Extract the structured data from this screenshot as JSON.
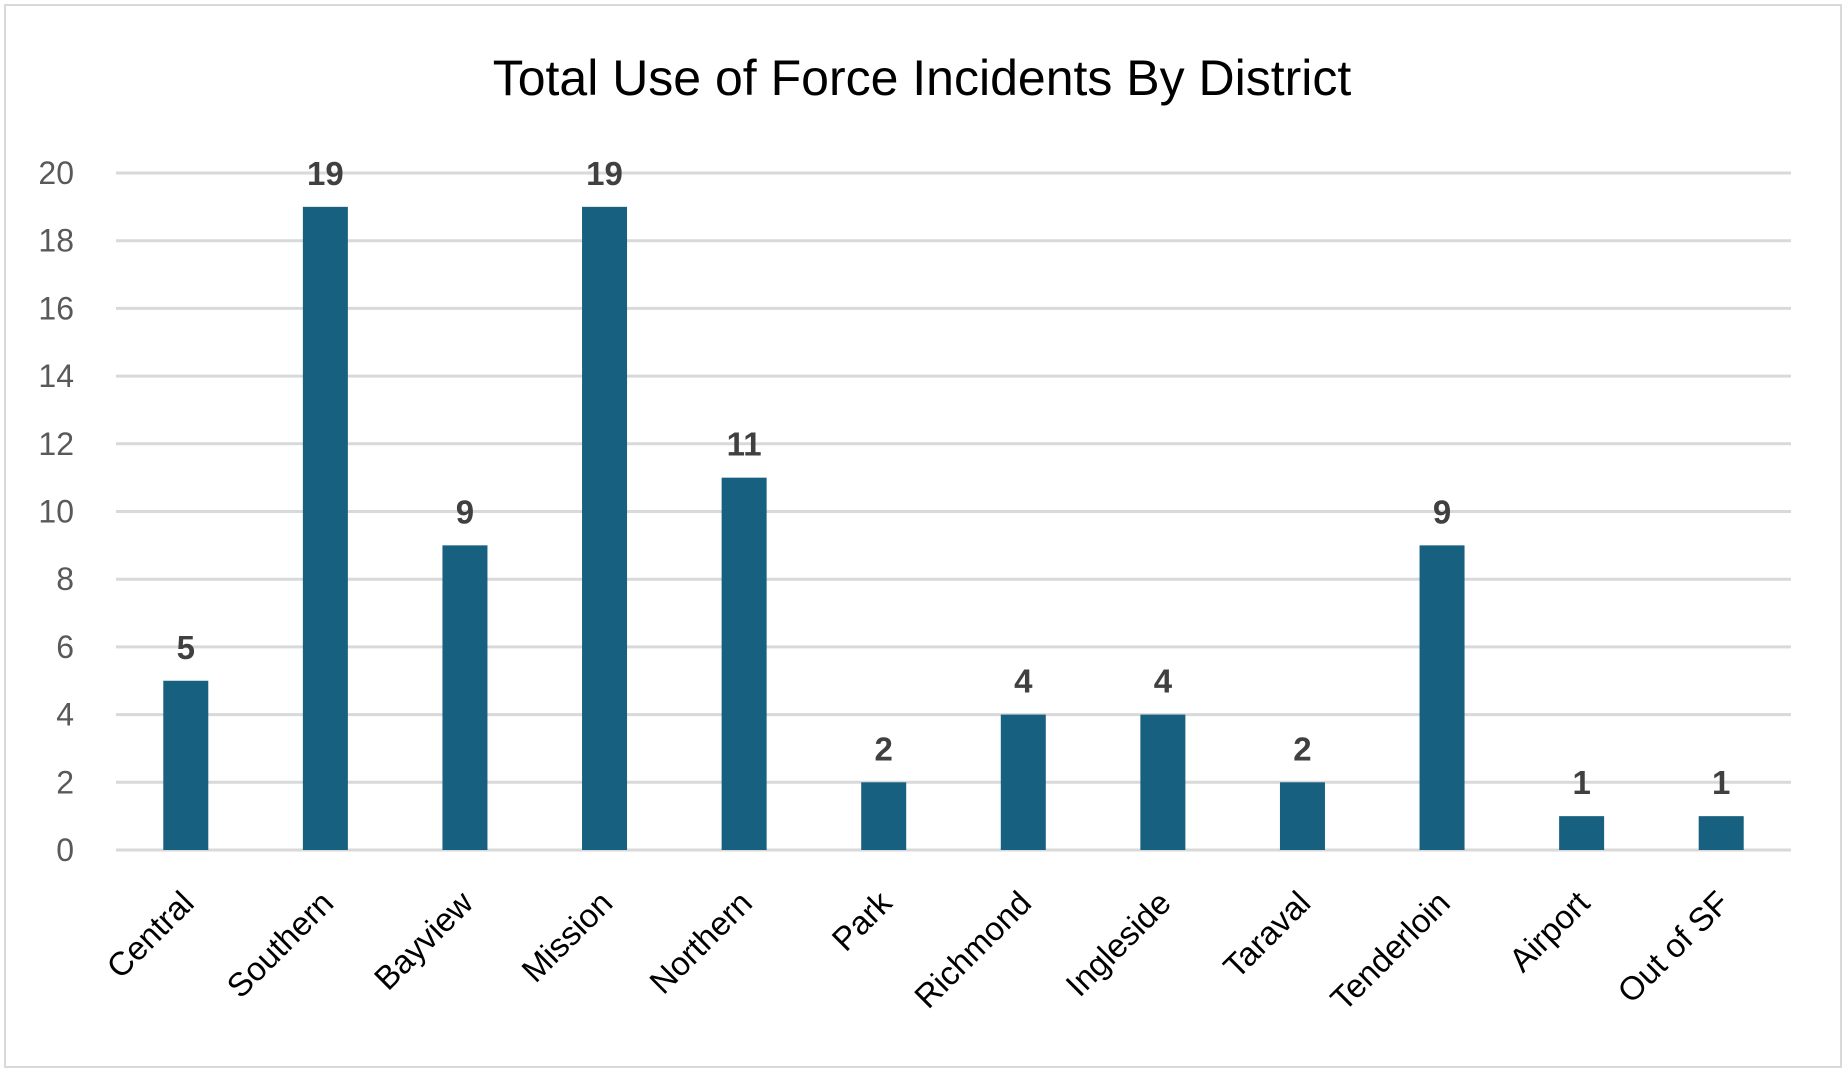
{
  "chart_data": {
    "type": "bar",
    "title": "Total Use of Force Incidents By District",
    "xlabel": "",
    "ylabel": "",
    "categories": [
      "Central",
      "Southern",
      "Bayview",
      "Mission",
      "Northern",
      "Park",
      "Richmond",
      "Ingleside",
      "Taraval",
      "Tenderloin",
      "Airport",
      "Out of SF"
    ],
    "values": [
      5,
      19,
      9,
      19,
      11,
      2,
      4,
      4,
      2,
      9,
      1,
      1
    ],
    "ylim": [
      0,
      20
    ],
    "yticks": [
      "0",
      "2",
      "4",
      "6",
      "8",
      "10",
      "12",
      "14",
      "16",
      "18",
      "20"
    ],
    "grid": true,
    "legend": "none",
    "data_labels": true,
    "bar_color": "#17607f"
  }
}
